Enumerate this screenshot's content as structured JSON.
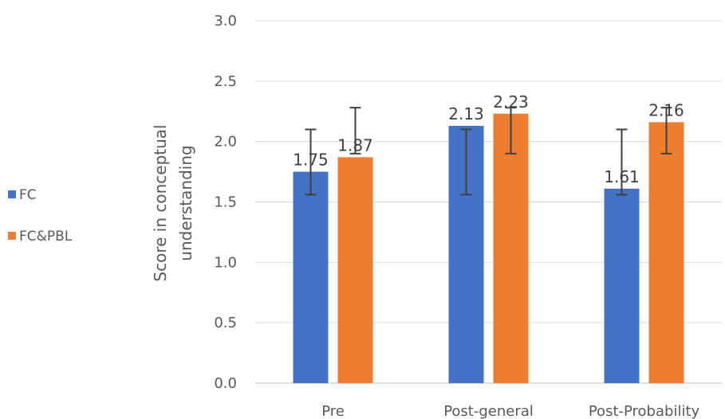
{
  "chart_data": {
    "type": "bar",
    "categories": [
      "Pre",
      "Post-general",
      "Post-Probability"
    ],
    "series": [
      {
        "name": "FC",
        "values": [
          1.75,
          2.13,
          1.61
        ],
        "error_low": [
          1.56,
          1.56,
          1.56
        ],
        "error_high": [
          2.1,
          2.1,
          2.1
        ],
        "color": "#4472C4"
      },
      {
        "name": "FC&PBL",
        "values": [
          1.87,
          2.23,
          2.16
        ],
        "error_low": [
          1.9,
          1.9,
          1.9
        ],
        "error_high": [
          2.28,
          2.28,
          2.28
        ],
        "color": "#ED7D31"
      }
    ],
    "data_labels": [
      [
        "1.75",
        "2.13",
        "1.61"
      ],
      [
        "1.87",
        "2.23",
        "2.16"
      ]
    ],
    "ylabel_lines": [
      "Score in conceptual",
      "understanding"
    ],
    "ylim": [
      0,
      3.0
    ],
    "yticks": [
      "0.0",
      "0.5",
      "1.0",
      "1.5",
      "2.0",
      "2.5",
      "3.0"
    ],
    "grid": true,
    "legend_position": "left"
  }
}
